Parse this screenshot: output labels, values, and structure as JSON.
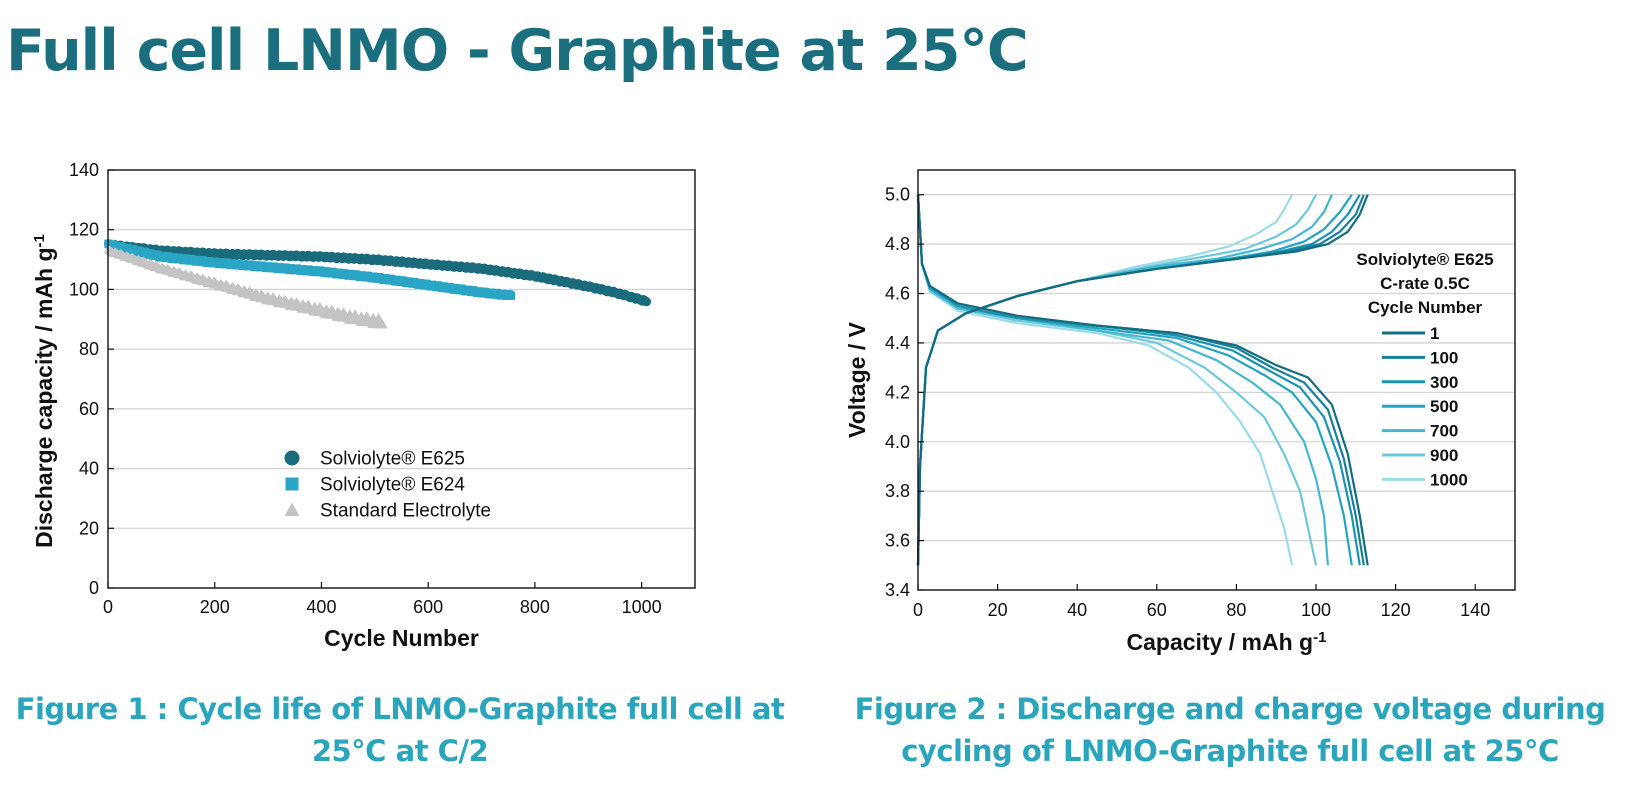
{
  "page": {
    "title": "Full cell LNMO - Graphite at 25°C",
    "caption1": {
      "line1": "Figure  1 : Cycle life of LNMO-Graphite full cell at",
      "line2": "25°C at C/2"
    },
    "caption2": {
      "line1": "Figure 2 : Discharge and charge voltage during",
      "line2": "cycling of LNMO-Graphite full cell at 25°C"
    }
  },
  "chart_data": [
    {
      "type": "scatter",
      "title": "",
      "xlabel": "Cycle Number",
      "ylabel": "Discharge capacity / mAh g",
      "ylabel_sup": "-1",
      "xlim": [
        0,
        1100
      ],
      "ylim": [
        0,
        140
      ],
      "x_ticks": [
        0,
        200,
        400,
        600,
        800,
        1000
      ],
      "y_ticks": [
        0,
        20,
        40,
        60,
        80,
        100,
        120,
        140
      ],
      "grid": "horizontal",
      "legend_position": "center",
      "series": [
        {
          "name": "Solviolyte® E625",
          "marker": "circle",
          "color": "#1a6b7c",
          "x": [
            1,
            100,
            200,
            300,
            400,
            500,
            600,
            700,
            800,
            900,
            950,
            1000,
            1010
          ],
          "y": [
            115,
            113,
            112,
            111.5,
            111,
            110,
            108.5,
            107,
            104.5,
            101,
            99,
            96.5,
            96
          ]
        },
        {
          "name": "Solviolyte® E624",
          "marker": "square",
          "color": "#2aa5c5",
          "x": [
            1,
            100,
            200,
            300,
            400,
            500,
            600,
            700,
            755
          ],
          "y": [
            115,
            111,
            109,
            107.5,
            106,
            104,
            101.5,
            99,
            98
          ]
        },
        {
          "name": "Standard Electrolyte",
          "marker": "triangle",
          "color": "#c4c4c4",
          "x": [
            1,
            100,
            200,
            300,
            400,
            450,
            515
          ],
          "y": [
            113,
            107,
            102,
            97,
            93,
            91,
            89
          ]
        }
      ]
    },
    {
      "type": "line",
      "title": "",
      "xlabel": "Capacity / mAh g",
      "xlabel_sup": "-1",
      "ylabel": "Voltage / V",
      "xlim": [
        0,
        150
      ],
      "ylim": [
        3.4,
        5.1
      ],
      "x_ticks": [
        0,
        20,
        40,
        60,
        80,
        100,
        120,
        140
      ],
      "y_ticks": [
        3.4,
        3.6,
        3.8,
        4.0,
        4.2,
        4.4,
        4.6,
        4.8,
        5.0
      ],
      "grid": "horizontal",
      "legend_position": "right",
      "legend_header": [
        "Solviolyte® E625",
        "C-rate 0.5C",
        "Cycle Number"
      ],
      "series": [
        {
          "name": "1",
          "color": "#146c80",
          "discharge": [
            [
              0,
              5.0
            ],
            [
              1,
              4.72
            ],
            [
              3,
              4.63
            ],
            [
              10,
              4.56
            ],
            [
              25,
              4.51
            ],
            [
              45,
              4.47
            ],
            [
              65,
              4.44
            ],
            [
              80,
              4.39
            ],
            [
              90,
              4.31
            ],
            [
              98,
              4.26
            ],
            [
              104,
              4.15
            ],
            [
              108,
              3.95
            ],
            [
              111,
              3.7
            ],
            [
              113,
              3.5
            ]
          ],
          "charge": [
            [
              0,
              3.5
            ],
            [
              0.5,
              3.9
            ],
            [
              2,
              4.3
            ],
            [
              5,
              4.45
            ],
            [
              12,
              4.52
            ],
            [
              25,
              4.59
            ],
            [
              40,
              4.65
            ],
            [
              60,
              4.7
            ],
            [
              80,
              4.74
            ],
            [
              95,
              4.77
            ],
            [
              103,
              4.8
            ],
            [
              108,
              4.85
            ],
            [
              111,
              4.92
            ],
            [
              113,
              5.0
            ]
          ]
        },
        {
          "name": "100",
          "color": "#17809a",
          "discharge": [
            [
              0,
              5.0
            ],
            [
              1,
              4.72
            ],
            [
              3,
              4.63
            ],
            [
              10,
              4.56
            ],
            [
              25,
              4.51
            ],
            [
              45,
              4.47
            ],
            [
              65,
              4.44
            ],
            [
              80,
              4.38
            ],
            [
              89,
              4.3
            ],
            [
              97,
              4.24
            ],
            [
              103,
              4.13
            ],
            [
              107,
              3.93
            ],
            [
              110,
              3.7
            ],
            [
              112,
              3.5
            ]
          ],
          "charge": [
            [
              0,
              3.5
            ],
            [
              0.5,
              3.9
            ],
            [
              2,
              4.3
            ],
            [
              5,
              4.45
            ],
            [
              12,
              4.52
            ],
            [
              25,
              4.59
            ],
            [
              40,
              4.65
            ],
            [
              60,
              4.7
            ],
            [
              80,
              4.74
            ],
            [
              93,
              4.77
            ],
            [
              101,
              4.8
            ],
            [
              106,
              4.85
            ],
            [
              110,
              4.92
            ],
            [
              112,
              5.0
            ]
          ]
        },
        {
          "name": "300",
          "color": "#1b92ae",
          "discharge": [
            [
              0,
              5.0
            ],
            [
              1,
              4.72
            ],
            [
              3,
              4.63
            ],
            [
              10,
              4.55
            ],
            [
              25,
              4.5
            ],
            [
              45,
              4.47
            ],
            [
              65,
              4.43
            ],
            [
              79,
              4.37
            ],
            [
              88,
              4.29
            ],
            [
              96,
              4.22
            ],
            [
              102,
              4.1
            ],
            [
              106,
              3.92
            ],
            [
              109,
              3.7
            ],
            [
              111,
              3.5
            ]
          ],
          "charge": [
            [
              0,
              3.5
            ],
            [
              0.5,
              3.9
            ],
            [
              2,
              4.3
            ],
            [
              5,
              4.45
            ],
            [
              12,
              4.52
            ],
            [
              25,
              4.59
            ],
            [
              40,
              4.65
            ],
            [
              60,
              4.7
            ],
            [
              80,
              4.74
            ],
            [
              91,
              4.77
            ],
            [
              99,
              4.8
            ],
            [
              104,
              4.85
            ],
            [
              108,
              4.92
            ],
            [
              111,
              5.0
            ]
          ]
        },
        {
          "name": "500",
          "color": "#23a4c0",
          "discharge": [
            [
              0,
              5.0
            ],
            [
              1,
              4.72
            ],
            [
              3,
              4.62
            ],
            [
              10,
              4.55
            ],
            [
              25,
              4.5
            ],
            [
              45,
              4.46
            ],
            [
              65,
              4.42
            ],
            [
              78,
              4.35
            ],
            [
              87,
              4.27
            ],
            [
              94,
              4.2
            ],
            [
              100,
              4.08
            ],
            [
              104,
              3.9
            ],
            [
              107,
              3.7
            ],
            [
              109,
              3.5
            ]
          ],
          "charge": [
            [
              0,
              3.5
            ],
            [
              0.5,
              3.9
            ],
            [
              2,
              4.3
            ],
            [
              5,
              4.45
            ],
            [
              12,
              4.52
            ],
            [
              25,
              4.59
            ],
            [
              40,
              4.65
            ],
            [
              60,
              4.7
            ],
            [
              78,
              4.74
            ],
            [
              89,
              4.77
            ],
            [
              97,
              4.81
            ],
            [
              102,
              4.86
            ],
            [
              106,
              4.93
            ],
            [
              109,
              5.0
            ]
          ]
        },
        {
          "name": "700",
          "color": "#45b6cf",
          "discharge": [
            [
              0,
              5.0
            ],
            [
              1,
              4.72
            ],
            [
              3,
              4.62
            ],
            [
              10,
              4.54
            ],
            [
              25,
              4.5
            ],
            [
              45,
              4.45
            ],
            [
              63,
              4.41
            ],
            [
              75,
              4.33
            ],
            [
              84,
              4.24
            ],
            [
              91,
              4.15
            ],
            [
              97,
              4.0
            ],
            [
              100,
              3.85
            ],
            [
              102,
              3.7
            ],
            [
              103,
              3.5
            ]
          ],
          "charge": [
            [
              0,
              3.5
            ],
            [
              0.5,
              3.9
            ],
            [
              2,
              4.3
            ],
            [
              5,
              4.45
            ],
            [
              12,
              4.52
            ],
            [
              25,
              4.59
            ],
            [
              40,
              4.65
            ],
            [
              60,
              4.71
            ],
            [
              75,
              4.74
            ],
            [
              86,
              4.78
            ],
            [
              94,
              4.82
            ],
            [
              99,
              4.87
            ],
            [
              102,
              4.93
            ],
            [
              104,
              5.0
            ]
          ]
        },
        {
          "name": "900",
          "color": "#6cc8dc",
          "discharge": [
            [
              0,
              5.0
            ],
            [
              1,
              4.72
            ],
            [
              3,
              4.61
            ],
            [
              10,
              4.54
            ],
            [
              25,
              4.49
            ],
            [
              45,
              4.45
            ],
            [
              60,
              4.4
            ],
            [
              72,
              4.3
            ],
            [
              80,
              4.2
            ],
            [
              87,
              4.1
            ],
            [
              92,
              3.95
            ],
            [
              96,
              3.8
            ],
            [
              98,
              3.65
            ],
            [
              100,
              3.5
            ]
          ],
          "charge": [
            [
              0,
              3.5
            ],
            [
              0.5,
              3.9
            ],
            [
              2,
              4.3
            ],
            [
              5,
              4.45
            ],
            [
              12,
              4.52
            ],
            [
              25,
              4.59
            ],
            [
              40,
              4.65
            ],
            [
              58,
              4.71
            ],
            [
              72,
              4.75
            ],
            [
              82,
              4.78
            ],
            [
              90,
              4.83
            ],
            [
              95,
              4.88
            ],
            [
              98,
              4.94
            ],
            [
              100,
              5.0
            ]
          ]
        },
        {
          "name": "1000",
          "color": "#9bdbe8",
          "discharge": [
            [
              0,
              5.0
            ],
            [
              1,
              4.72
            ],
            [
              3,
              4.61
            ],
            [
              10,
              4.53
            ],
            [
              25,
              4.48
            ],
            [
              45,
              4.44
            ],
            [
              58,
              4.39
            ],
            [
              68,
              4.3
            ],
            [
              75,
              4.2
            ],
            [
              81,
              4.08
            ],
            [
              86,
              3.95
            ],
            [
              89,
              3.8
            ],
            [
              92,
              3.65
            ],
            [
              94,
              3.5
            ]
          ],
          "charge": [
            [
              0,
              3.5
            ],
            [
              0.5,
              3.9
            ],
            [
              2,
              4.3
            ],
            [
              5,
              4.45
            ],
            [
              12,
              4.52
            ],
            [
              25,
              4.59
            ],
            [
              40,
              4.65
            ],
            [
              55,
              4.71
            ],
            [
              68,
              4.75
            ],
            [
              78,
              4.79
            ],
            [
              85,
              4.84
            ],
            [
              90,
              4.89
            ],
            [
              92,
              4.94
            ],
            [
              94,
              5.0
            ]
          ]
        }
      ]
    }
  ]
}
